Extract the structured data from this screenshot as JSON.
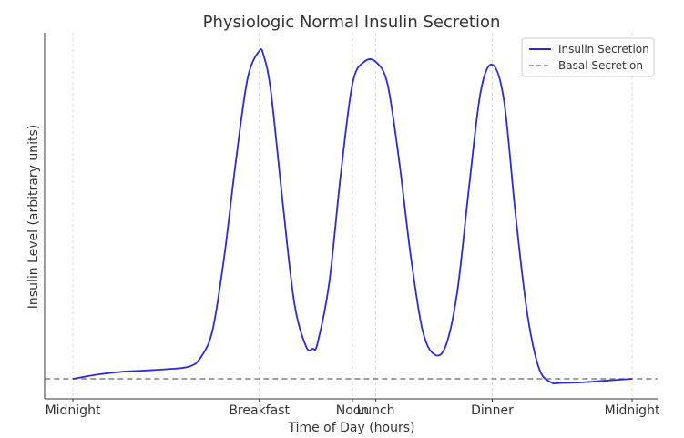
{
  "chart_data": {
    "type": "line",
    "title": "Physiologic Normal Insulin Secretion",
    "xlabel": "Time of Day (hours)",
    "ylabel": "Insulin Level (arbitrary units)",
    "xlim": [
      0,
      24
    ],
    "ylim": [
      -0.7,
      12.5
    ],
    "grid": "x-only",
    "legend": "top-right",
    "xticks": [
      {
        "x": 0,
        "label": "Midnight"
      },
      {
        "x": 8,
        "label": "Breakfast"
      },
      {
        "x": 12,
        "label": "Noon"
      },
      {
        "x": 13,
        "label": "Lunch"
      },
      {
        "x": 18,
        "label": "Dinner"
      },
      {
        "x": 24,
        "label": "Midnight"
      }
    ],
    "series": [
      {
        "name": "Insulin Secretion",
        "color": "#2b2bd0",
        "style": "solid",
        "x": [
          0,
          1,
          2,
          3,
          4,
          5,
          5.5,
          6,
          6.5,
          7,
          7.5,
          8,
          8.2,
          8.5,
          9,
          9.5,
          10,
          10.3,
          10.5,
          11,
          11.5,
          12,
          12.5,
          13,
          13.5,
          14,
          14.5,
          15,
          15.5,
          16,
          16.5,
          17,
          17.5,
          18,
          18.5,
          19,
          19.5,
          20,
          20.5,
          21,
          22,
          23,
          24
        ],
        "y": [
          0,
          0.15,
          0.25,
          0.3,
          0.35,
          0.45,
          0.8,
          1.8,
          4.5,
          8.0,
          11.0,
          12.0,
          11.8,
          10.5,
          6.5,
          2.8,
          1.2,
          1.1,
          1.3,
          3.5,
          7.5,
          10.8,
          11.6,
          11.6,
          10.8,
          8.0,
          4.5,
          1.8,
          0.9,
          1.2,
          3.2,
          7.0,
          10.5,
          11.5,
          10.2,
          6.0,
          2.4,
          0.4,
          -0.12,
          -0.15,
          -0.12,
          -0.06,
          0
        ]
      },
      {
        "name": "Basal Secretion",
        "color": "#808080",
        "style": "dashed",
        "x": [
          -1.2,
          25.2
        ],
        "y": [
          0,
          0
        ]
      }
    ]
  }
}
